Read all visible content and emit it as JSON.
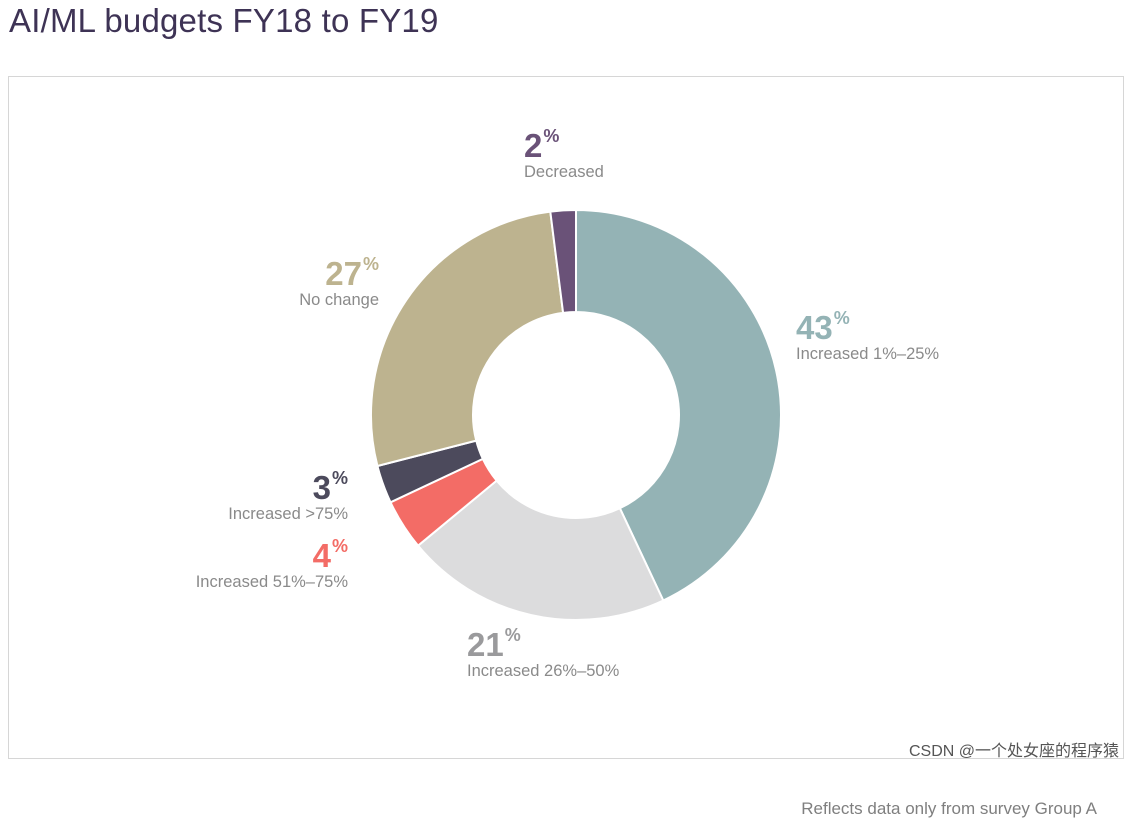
{
  "page": {
    "title": "AI/ML budgets FY18 to FY19"
  },
  "chart_data": {
    "type": "pie",
    "style": "donut",
    "title": "AI/ML budgets FY18 to FY19",
    "percent_symbol": "%",
    "slices": [
      {
        "value": 43,
        "label": "Increased 1%–25%",
        "color": "#94b3b5"
      },
      {
        "value": 21,
        "label": "Increased 26%–50%",
        "color": "#dcdcdd",
        "pct_color": "#9a9a9c"
      },
      {
        "value": 4,
        "label": "Increased 51%–75%",
        "color": "#f36c66"
      },
      {
        "value": 3,
        "label": "Increased >75%",
        "color": "#4c4a5c"
      },
      {
        "value": 27,
        "label": "No change",
        "color": "#bdb38f"
      },
      {
        "value": 2,
        "label": "Decreased",
        "color": "#6a5278"
      }
    ],
    "footnote": "Reflects data only from survey Group A"
  },
  "watermark": "CSDN @一个处女座的程序猿"
}
